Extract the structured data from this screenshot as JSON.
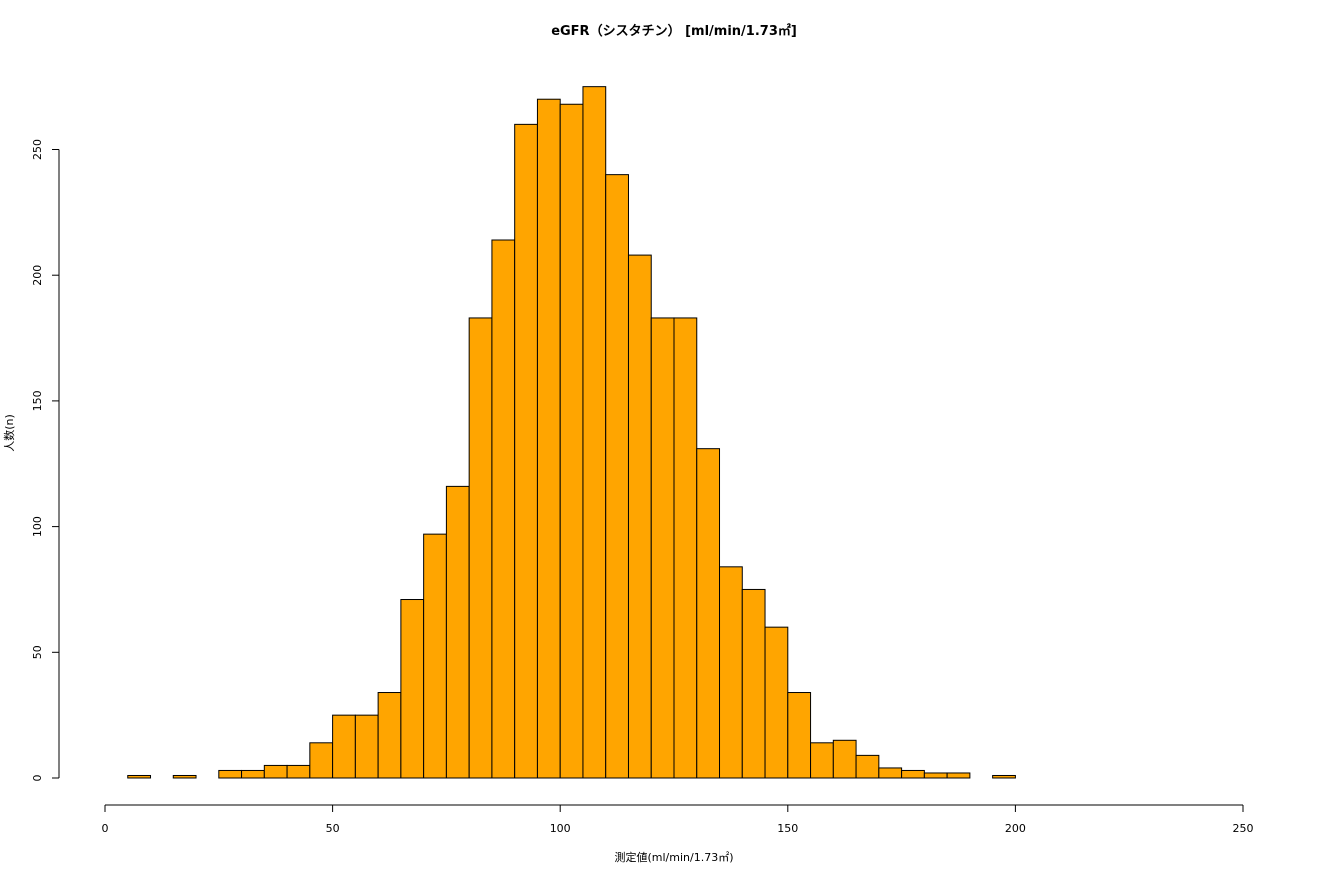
{
  "chart_data": {
    "type": "bar",
    "title": "eGFR（シスタチン） [ml/min/1.73㎡]",
    "xlabel": "測定値(ml/min/1.73㎡)",
    "ylabel": "人数(n)",
    "xlim": [
      0,
      250
    ],
    "ylim": [
      0,
      275
    ],
    "x_ticks": [
      0,
      50,
      100,
      150,
      200,
      250
    ],
    "y_ticks": [
      0,
      50,
      100,
      150,
      200,
      250
    ],
    "bin_width": 5,
    "bins_start": [
      5,
      10,
      15,
      20,
      25,
      30,
      35,
      40,
      45,
      50,
      55,
      60,
      65,
      70,
      75,
      80,
      85,
      90,
      95,
      100,
      105,
      110,
      115,
      120,
      125,
      130,
      135,
      140,
      145,
      150,
      155,
      160,
      165,
      170,
      175,
      180,
      185,
      190,
      195
    ],
    "values": [
      1,
      0,
      1,
      0,
      3,
      3,
      5,
      5,
      14,
      25,
      25,
      34,
      71,
      97,
      116,
      183,
      214,
      260,
      270,
      268,
      275,
      240,
      208,
      183,
      183,
      131,
      84,
      75,
      60,
      34,
      14,
      15,
      9,
      4,
      3,
      2,
      2,
      0,
      1
    ],
    "bar_color": "#FFA500",
    "bar_edge_color": "#000000",
    "grid": false,
    "legend": "none"
  }
}
